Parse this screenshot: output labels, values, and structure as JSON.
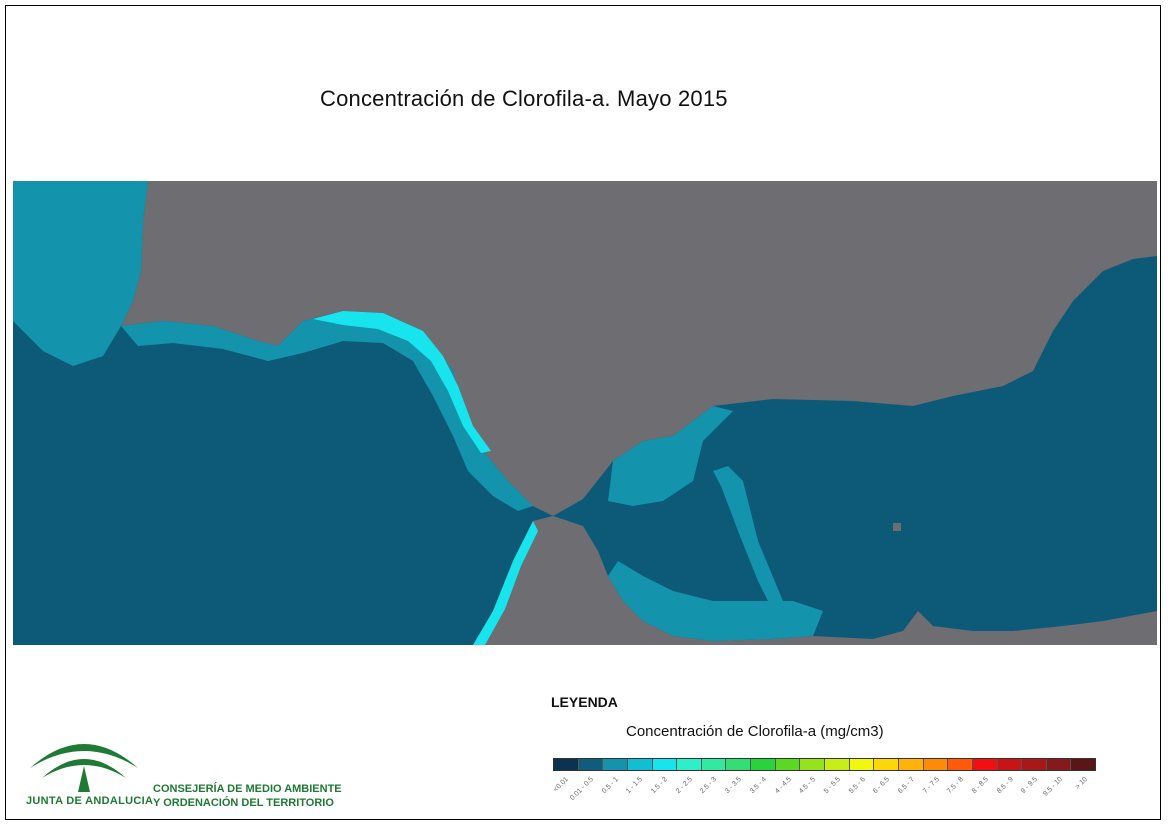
{
  "title": "Concentración de Clorofila-a. Mayo 2015",
  "legend": {
    "title": "LEYENDA",
    "subtitle": "Concentración de Clorofila-a (mg/cm3)",
    "classes": [
      {
        "label": "<0.01",
        "color": "#0b3350"
      },
      {
        "label": "0.01 - 0.5",
        "color": "#0e5d7c"
      },
      {
        "label": "0.5 - 1",
        "color": "#1493ad"
      },
      {
        "label": "1 - 1.5",
        "color": "#12bfd2"
      },
      {
        "label": "1.5 - 2",
        "color": "#18e4ee"
      },
      {
        "label": "2 - 2.5",
        "color": "#2ef0c8"
      },
      {
        "label": "2.5 - 3",
        "color": "#33e8a0"
      },
      {
        "label": "3 - 3.5",
        "color": "#35de72"
      },
      {
        "label": "3.5 - 4",
        "color": "#29d43a"
      },
      {
        "label": "4 - 4.5",
        "color": "#5ad824"
      },
      {
        "label": "4.5 - 5",
        "color": "#96e21c"
      },
      {
        "label": "5 - 5.5",
        "color": "#c8ee18"
      },
      {
        "label": "5.5 - 6",
        "color": "#f2f70e"
      },
      {
        "label": "6 - 6.5",
        "color": "#ffd60a"
      },
      {
        "label": "6.5 - 7",
        "color": "#ffb30a"
      },
      {
        "label": "7 - 7.5",
        "color": "#ff8a0a"
      },
      {
        "label": "7.5 - 8",
        "color": "#ff5a0a"
      },
      {
        "label": "8 - 8.5",
        "color": "#f01010"
      },
      {
        "label": "8.5 - 9",
        "color": "#c81414"
      },
      {
        "label": "9 - 9.5",
        "color": "#a81818"
      },
      {
        "label": "9.5 - 10",
        "color": "#861a1a"
      },
      {
        "label": "> 10",
        "color": "#5a1616"
      }
    ]
  },
  "colors": {
    "land": "#6d6d72",
    "sea": "#0c5a78",
    "coastal_low": "#1493ad",
    "coastal_mid": "#18e4ee",
    "coastal_high": "#3ee07a",
    "brand_green": "#1e7a34"
  },
  "branding": {
    "logo_name": "JUNTA DE ANDALUCIA",
    "department_line1": "CONSEJERÍA DE MEDIO AMBIENTE",
    "department_line2": "Y ORDENACIÓN DEL TERRITORIO"
  }
}
